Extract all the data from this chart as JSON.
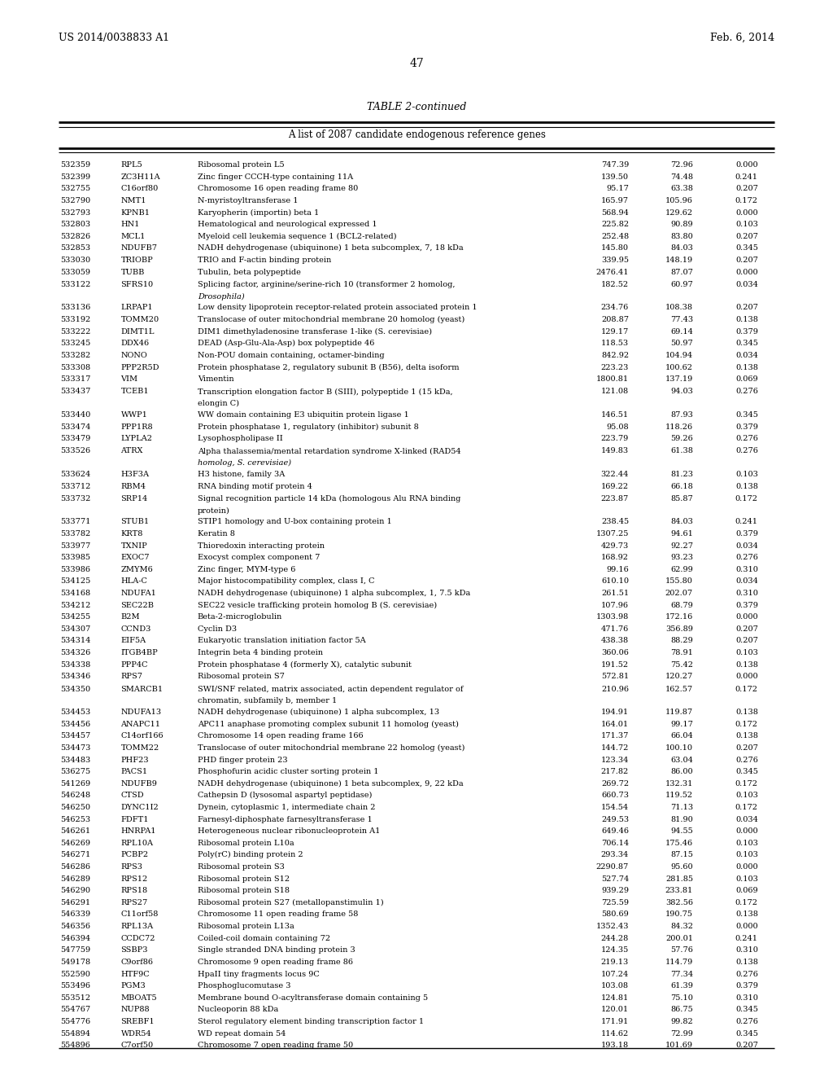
{
  "header_left": "US 2014/0038833 A1",
  "header_right": "Feb. 6, 2014",
  "page_number": "47",
  "table_title": "TABLE 2-continued",
  "table_subtitle": "A list of 2087 candidate endogenous reference genes",
  "rows": [
    [
      "532359",
      "RPL5",
      "Ribosomal protein L5",
      "747.39",
      "72.96",
      "0.000"
    ],
    [
      "532399",
      "ZC3H11A",
      "Zinc finger CCCH-type containing 11A",
      "139.50",
      "74.48",
      "0.241"
    ],
    [
      "532755",
      "C16orf80",
      "Chromosome 16 open reading frame 80",
      "95.17",
      "63.38",
      "0.207"
    ],
    [
      "532790",
      "NMT1",
      "N-myristoyltransferase 1",
      "165.97",
      "105.96",
      "0.172"
    ],
    [
      "532793",
      "KPNB1",
      "Karyopherin (importin) beta 1",
      "568.94",
      "129.62",
      "0.000"
    ],
    [
      "532803",
      "HN1",
      "Hematological and neurological expressed 1",
      "225.82",
      "90.89",
      "0.103"
    ],
    [
      "532826",
      "MCL1",
      "Myeloid cell leukemia sequence 1 (BCL2-related)",
      "252.48",
      "83.80",
      "0.207"
    ],
    [
      "532853",
      "NDUFB7",
      "NADH dehydrogenase (ubiquinone) 1 beta subcomplex, 7, 18 kDa",
      "145.80",
      "84.03",
      "0.345"
    ],
    [
      "533030",
      "TRIOBP",
      "TRIO and F-actin binding protein",
      "339.95",
      "148.19",
      "0.207"
    ],
    [
      "533059",
      "TUBB",
      "Tubulin, beta polypeptide",
      "2476.41",
      "87.07",
      "0.000"
    ],
    [
      "533122",
      "SFRS10",
      "Splicing factor, arginine/serine-rich 10 (transformer 2 homolog,\nDrosophila)",
      "182.52",
      "60.97",
      "0.034"
    ],
    [
      "533136",
      "LRPAP1",
      "Low density lipoprotein receptor-related protein associated protein 1",
      "234.76",
      "108.38",
      "0.207"
    ],
    [
      "533192",
      "TOMM20",
      "Translocase of outer mitochondrial membrane 20 homolog (yeast)",
      "208.87",
      "77.43",
      "0.138"
    ],
    [
      "533222",
      "DIMT1L",
      "DIM1 dimethyladenosine transferase 1-like (S. cerevisiae)",
      "129.17",
      "69.14",
      "0.379"
    ],
    [
      "533245",
      "DDX46",
      "DEAD (Asp-Glu-Ala-Asp) box polypeptide 46",
      "118.53",
      "50.97",
      "0.345"
    ],
    [
      "533282",
      "NONO",
      "Non-POU domain containing, octamer-binding",
      "842.92",
      "104.94",
      "0.034"
    ],
    [
      "533308",
      "PPP2R5D",
      "Protein phosphatase 2, regulatory subunit B (B56), delta isoform",
      "223.23",
      "100.62",
      "0.138"
    ],
    [
      "533317",
      "VIM",
      "Vimentin",
      "1800.81",
      "137.19",
      "0.069"
    ],
    [
      "533437",
      "TCEB1",
      "Transcription elongation factor B (SIII), polypeptide 1 (15 kDa,\nelongin C)",
      "121.08",
      "94.03",
      "0.276"
    ],
    [
      "533440",
      "WWP1",
      "WW domain containing E3 ubiquitin protein ligase 1",
      "146.51",
      "87.93",
      "0.345"
    ],
    [
      "533474",
      "PPP1R8",
      "Protein phosphatase 1, regulatory (inhibitor) subunit 8",
      "95.08",
      "118.26",
      "0.379"
    ],
    [
      "533479",
      "LYPLA2",
      "Lysophospholipase II",
      "223.79",
      "59.26",
      "0.276"
    ],
    [
      "533526",
      "ATRX",
      "Alpha thalassemia/mental retardation syndrome X-linked (RAD54\nhomolog, S. cerevisiae)",
      "149.83",
      "61.38",
      "0.276"
    ],
    [
      "533624",
      "H3F3A",
      "H3 histone, family 3A",
      "322.44",
      "81.23",
      "0.103"
    ],
    [
      "533712",
      "RBM4",
      "RNA binding motif protein 4",
      "169.22",
      "66.18",
      "0.138"
    ],
    [
      "533732",
      "SRP14",
      "Signal recognition particle 14 kDa (homologous Alu RNA binding\nprotein)",
      "223.87",
      "85.87",
      "0.172"
    ],
    [
      "533771",
      "STUB1",
      "STIP1 homology and U-box containing protein 1",
      "238.45",
      "84.03",
      "0.241"
    ],
    [
      "533782",
      "KRT8",
      "Keratin 8",
      "1307.25",
      "94.61",
      "0.379"
    ],
    [
      "533977",
      "TXNIP",
      "Thioredoxin interacting protein",
      "429.73",
      "92.27",
      "0.034"
    ],
    [
      "533985",
      "EXOC7",
      "Exocyst complex component 7",
      "168.92",
      "93.23",
      "0.276"
    ],
    [
      "533986",
      "ZMYM6",
      "Zinc finger, MYM-type 6",
      "99.16",
      "62.99",
      "0.310"
    ],
    [
      "534125",
      "HLA-C",
      "Major histocompatibility complex, class I, C",
      "610.10",
      "155.80",
      "0.034"
    ],
    [
      "534168",
      "NDUFA1",
      "NADH dehydrogenase (ubiquinone) 1 alpha subcomplex, 1, 7.5 kDa",
      "261.51",
      "202.07",
      "0.310"
    ],
    [
      "534212",
      "SEC22B",
      "SEC22 vesicle trafficking protein homolog B (S. cerevisiae)",
      "107.96",
      "68.79",
      "0.379"
    ],
    [
      "534255",
      "B2M",
      "Beta-2-microglobulin",
      "1303.98",
      "172.16",
      "0.000"
    ],
    [
      "534307",
      "CCND3",
      "Cyclin D3",
      "471.76",
      "356.89",
      "0.207"
    ],
    [
      "534314",
      "EIF5A",
      "Eukaryotic translation initiation factor 5A",
      "438.38",
      "88.29",
      "0.207"
    ],
    [
      "534326",
      "ITGB4BP",
      "Integrin beta 4 binding protein",
      "360.06",
      "78.91",
      "0.103"
    ],
    [
      "534338",
      "PPP4C",
      "Protein phosphatase 4 (formerly X), catalytic subunit",
      "191.52",
      "75.42",
      "0.138"
    ],
    [
      "534346",
      "RPS7",
      "Ribosomal protein S7",
      "572.81",
      "120.27",
      "0.000"
    ],
    [
      "534350",
      "SMARCB1",
      "SWI/SNF related, matrix associated, actin dependent regulator of\nchromatin, subfamily b, member 1",
      "210.96",
      "162.57",
      "0.172"
    ],
    [
      "534453",
      "NDUFA13",
      "NADH dehydrogenase (ubiquinone) 1 alpha subcomplex, 13",
      "194.91",
      "119.87",
      "0.138"
    ],
    [
      "534456",
      "ANAPC11",
      "APC11 anaphase promoting complex subunit 11 homolog (yeast)",
      "164.01",
      "99.17",
      "0.172"
    ],
    [
      "534457",
      "C14orf166",
      "Chromosome 14 open reading frame 166",
      "171.37",
      "66.04",
      "0.138"
    ],
    [
      "534473",
      "TOMM22",
      "Translocase of outer mitochondrial membrane 22 homolog (yeast)",
      "144.72",
      "100.10",
      "0.207"
    ],
    [
      "534483",
      "PHF23",
      "PHD finger protein 23",
      "123.34",
      "63.04",
      "0.276"
    ],
    [
      "536275",
      "PACS1",
      "Phosphofurin acidic cluster sorting protein 1",
      "217.82",
      "86.00",
      "0.345"
    ],
    [
      "541269",
      "NDUFB9",
      "NADH dehydrogenase (ubiquinone) 1 beta subcomplex, 9, 22 kDa",
      "269.72",
      "132.31",
      "0.172"
    ],
    [
      "546248",
      "CTSD",
      "Cathepsin D (lysosomal aspartyl peptidase)",
      "660.73",
      "119.52",
      "0.103"
    ],
    [
      "546250",
      "DYNC1I2",
      "Dynein, cytoplasmic 1, intermediate chain 2",
      "154.54",
      "71.13",
      "0.172"
    ],
    [
      "546253",
      "FDFT1",
      "Farnesyl-diphosphate farnesyltransferase 1",
      "249.53",
      "81.90",
      "0.034"
    ],
    [
      "546261",
      "HNRPA1",
      "Heterogeneous nuclear ribonucleoprotein A1",
      "649.46",
      "94.55",
      "0.000"
    ],
    [
      "546269",
      "RPL10A",
      "Ribosomal protein L10a",
      "706.14",
      "175.46",
      "0.103"
    ],
    [
      "546271",
      "PCBP2",
      "Poly(rC) binding protein 2",
      "293.34",
      "87.15",
      "0.103"
    ],
    [
      "546286",
      "RPS3",
      "Ribosomal protein S3",
      "2290.87",
      "95.60",
      "0.000"
    ],
    [
      "546289",
      "RPS12",
      "Ribosomal protein S12",
      "527.74",
      "281.85",
      "0.103"
    ],
    [
      "546290",
      "RPS18",
      "Ribosomal protein S18",
      "939.29",
      "233.81",
      "0.069"
    ],
    [
      "546291",
      "RPS27",
      "Ribosomal protein S27 (metallopanstimulin 1)",
      "725.59",
      "382.56",
      "0.172"
    ],
    [
      "546339",
      "C11orf58",
      "Chromosome 11 open reading frame 58",
      "580.69",
      "190.75",
      "0.138"
    ],
    [
      "546356",
      "RPL13A",
      "Ribosomal protein L13a",
      "1352.43",
      "84.32",
      "0.000"
    ],
    [
      "546394",
      "CCDC72",
      "Coiled-coil domain containing 72",
      "244.28",
      "200.01",
      "0.241"
    ],
    [
      "547759",
      "SSBP3",
      "Single stranded DNA binding protein 3",
      "124.35",
      "57.76",
      "0.310"
    ],
    [
      "549178",
      "C9orf86",
      "Chromosome 9 open reading frame 86",
      "219.13",
      "114.79",
      "0.138"
    ],
    [
      "552590",
      "HTF9C",
      "HpaII tiny fragments locus 9C",
      "107.24",
      "77.34",
      "0.276"
    ],
    [
      "553496",
      "PGM3",
      "Phosphoglucomutase 3",
      "103.08",
      "61.39",
      "0.379"
    ],
    [
      "553512",
      "MBOAT5",
      "Membrane bound O-acyltransferase domain containing 5",
      "124.81",
      "75.10",
      "0.310"
    ],
    [
      "554767",
      "NUP88",
      "Nucleoporin 88 kDa",
      "120.01",
      "86.75",
      "0.345"
    ],
    [
      "554776",
      "SREBF1",
      "Sterol regulatory element binding transcription factor 1",
      "171.91",
      "99.82",
      "0.276"
    ],
    [
      "554894",
      "WDR54",
      "WD repeat domain 54",
      "114.62",
      "72.99",
      "0.345"
    ],
    [
      "554896",
      "C7orf50",
      "Chromosome 7 open reading frame 50",
      "193.18",
      "101.69",
      "0.207"
    ]
  ],
  "italic_second_lines": [
    "Drosophila",
    "S. cerevisiae",
    "elongin C",
    "homolog, S. cerevisiae",
    "protein)"
  ]
}
